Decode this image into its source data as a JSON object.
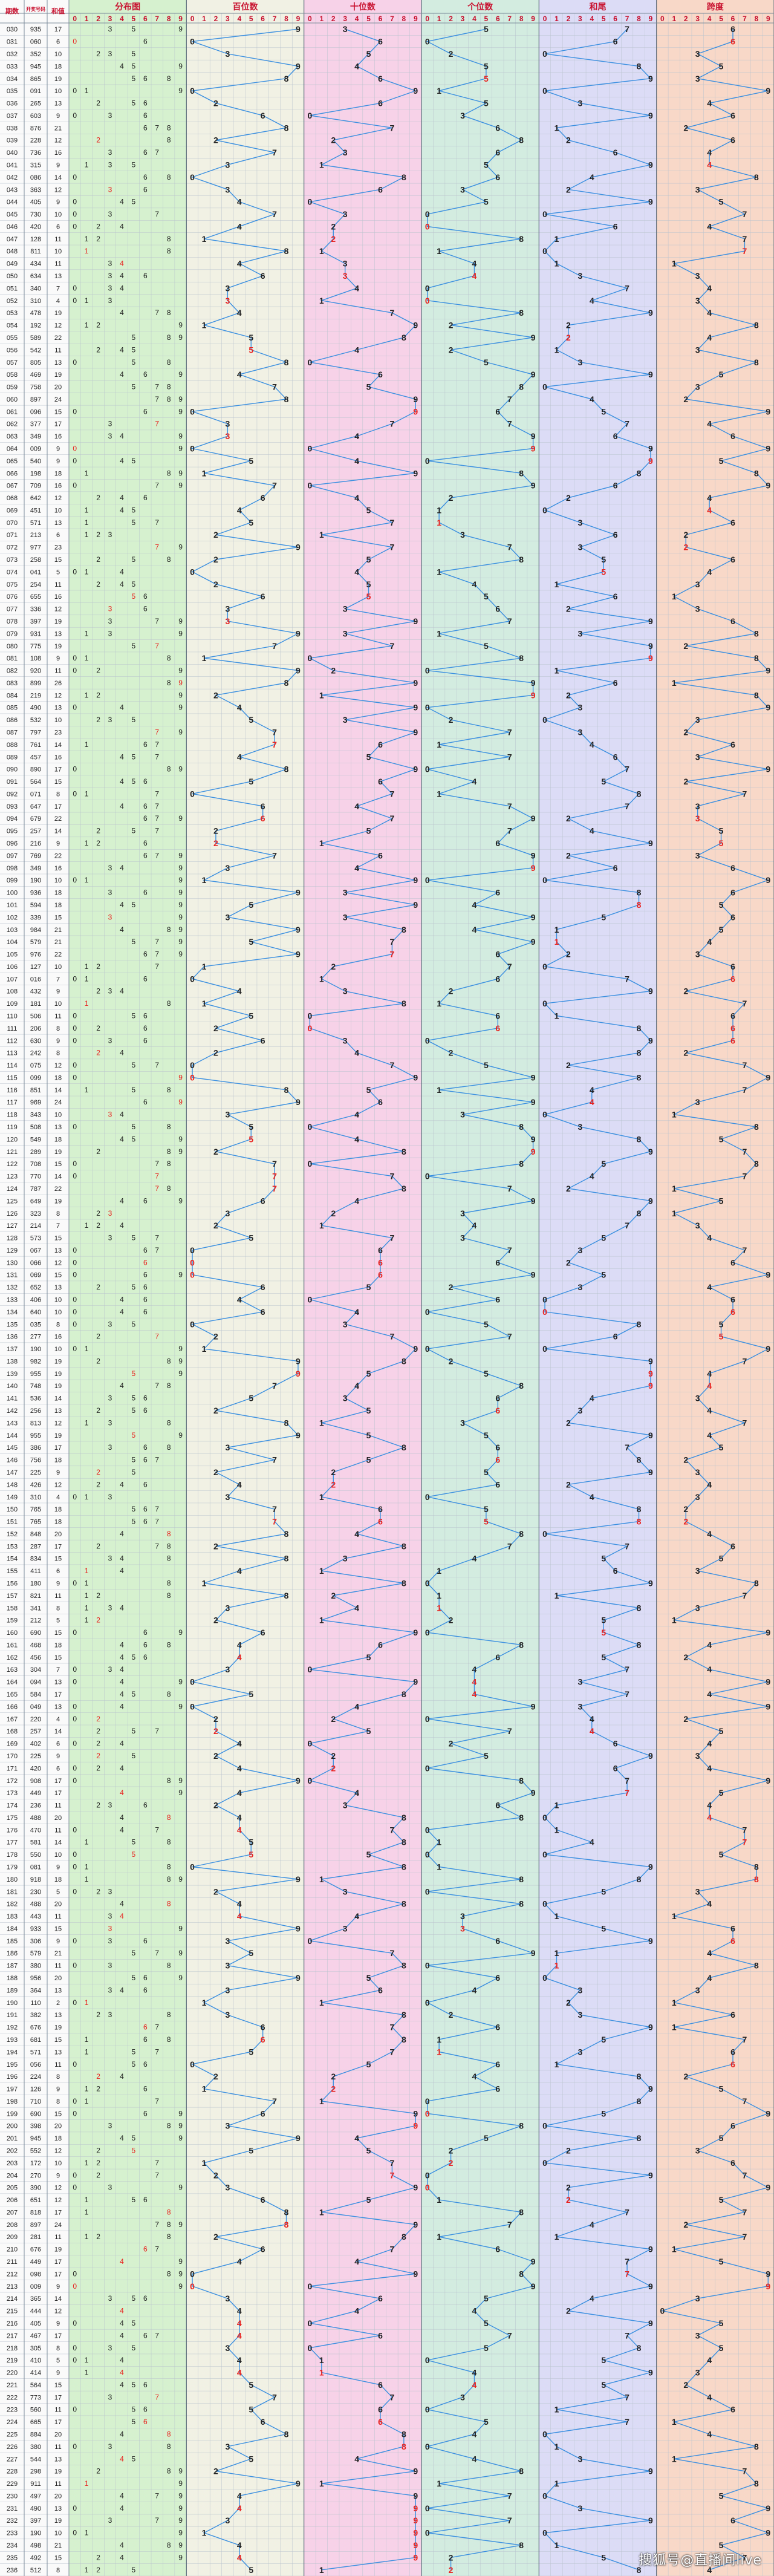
{
  "chart_data": {
    "type": "line",
    "header": {
      "issue_label": "期数",
      "number_label": "开奖号码",
      "sum_label": "和值",
      "sections": [
        "分布图",
        "百位数",
        "十位数",
        "个位数",
        "和尾",
        "跨度"
      ]
    },
    "digit_columns": [
      "0",
      "1",
      "2",
      "3",
      "4",
      "5",
      "6",
      "7",
      "8",
      "9"
    ],
    "rows": [
      {
        "issue": "030",
        "number": "935",
        "sum": "17"
      },
      {
        "issue": "031",
        "number": "060",
        "sum": "6"
      },
      {
        "issue": "032",
        "number": "352",
        "sum": "10"
      },
      {
        "issue": "033",
        "number": "945",
        "sum": "18"
      },
      {
        "issue": "034",
        "number": "865",
        "sum": "19"
      },
      {
        "issue": "035",
        "number": "091",
        "sum": "10"
      },
      {
        "issue": "036",
        "number": "265",
        "sum": "13"
      },
      {
        "issue": "037",
        "number": "603",
        "sum": "9"
      },
      {
        "issue": "038",
        "number": "876",
        "sum": "21"
      },
      {
        "issue": "039",
        "number": "228",
        "sum": "12"
      },
      {
        "issue": "040",
        "number": "736",
        "sum": "16"
      },
      {
        "issue": "041",
        "number": "315",
        "sum": "9"
      },
      {
        "issue": "042",
        "number": "086",
        "sum": "14"
      },
      {
        "issue": "043",
        "number": "363",
        "sum": "12"
      },
      {
        "issue": "044",
        "number": "405",
        "sum": "9"
      },
      {
        "issue": "045",
        "number": "730",
        "sum": "10"
      },
      {
        "issue": "046",
        "number": "420",
        "sum": "6"
      },
      {
        "issue": "047",
        "number": "128",
        "sum": "11"
      },
      {
        "issue": "048",
        "number": "811",
        "sum": "10"
      },
      {
        "issue": "049",
        "number": "434",
        "sum": "11"
      },
      {
        "issue": "050",
        "number": "634",
        "sum": "13"
      },
      {
        "issue": "051",
        "number": "340",
        "sum": "7"
      },
      {
        "issue": "052",
        "number": "310",
        "sum": "4"
      },
      {
        "issue": "053",
        "number": "478",
        "sum": "19"
      },
      {
        "issue": "054",
        "number": "192",
        "sum": "12"
      },
      {
        "issue": "055",
        "number": "589",
        "sum": "22"
      },
      {
        "issue": "056",
        "number": "542",
        "sum": "11"
      },
      {
        "issue": "057",
        "number": "805",
        "sum": "13"
      },
      {
        "issue": "058",
        "number": "469",
        "sum": "19"
      },
      {
        "issue": "059",
        "number": "758",
        "sum": "20"
      },
      {
        "issue": "060",
        "number": "897",
        "sum": "24"
      },
      {
        "issue": "061",
        "number": "096",
        "sum": "15"
      },
      {
        "issue": "062",
        "number": "377",
        "sum": "17"
      },
      {
        "issue": "063",
        "number": "349",
        "sum": "16"
      },
      {
        "issue": "064",
        "number": "009",
        "sum": "9"
      },
      {
        "issue": "065",
        "number": "540",
        "sum": "9"
      },
      {
        "issue": "066",
        "number": "198",
        "sum": "18"
      },
      {
        "issue": "067",
        "number": "709",
        "sum": "16"
      },
      {
        "issue": "068",
        "number": "642",
        "sum": "12"
      },
      {
        "issue": "069",
        "number": "451",
        "sum": "10"
      },
      {
        "issue": "070",
        "number": "571",
        "sum": "13"
      },
      {
        "issue": "071",
        "number": "213",
        "sum": "6"
      },
      {
        "issue": "072",
        "number": "977",
        "sum": "23"
      },
      {
        "issue": "073",
        "number": "258",
        "sum": "15"
      },
      {
        "issue": "074",
        "number": "041",
        "sum": "5"
      },
      {
        "issue": "075",
        "number": "254",
        "sum": "11"
      },
      {
        "issue": "076",
        "number": "655",
        "sum": "16"
      },
      {
        "issue": "077",
        "number": "336",
        "sum": "12"
      },
      {
        "issue": "078",
        "number": "397",
        "sum": "19"
      },
      {
        "issue": "079",
        "number": "931",
        "sum": "13"
      },
      {
        "issue": "080",
        "number": "775",
        "sum": "19"
      },
      {
        "issue": "081",
        "number": "108",
        "sum": "9"
      },
      {
        "issue": "082",
        "number": "920",
        "sum": "11"
      },
      {
        "issue": "083",
        "number": "899",
        "sum": "26"
      },
      {
        "issue": "084",
        "number": "219",
        "sum": "12"
      },
      {
        "issue": "085",
        "number": "490",
        "sum": "13"
      },
      {
        "issue": "086",
        "number": "532",
        "sum": "10"
      },
      {
        "issue": "087",
        "number": "797",
        "sum": "23"
      },
      {
        "issue": "088",
        "number": "761",
        "sum": "14"
      },
      {
        "issue": "089",
        "number": "457",
        "sum": "16"
      },
      {
        "issue": "090",
        "number": "890",
        "sum": "17"
      },
      {
        "issue": "091",
        "number": "564",
        "sum": "15"
      },
      {
        "issue": "092",
        "number": "071",
        "sum": "8"
      },
      {
        "issue": "093",
        "number": "647",
        "sum": "17"
      },
      {
        "issue": "094",
        "number": "679",
        "sum": "22"
      },
      {
        "issue": "095",
        "number": "257",
        "sum": "14"
      },
      {
        "issue": "096",
        "number": "216",
        "sum": "9"
      },
      {
        "issue": "097",
        "number": "769",
        "sum": "22"
      },
      {
        "issue": "098",
        "number": "349",
        "sum": "16"
      },
      {
        "issue": "099",
        "number": "190",
        "sum": "10"
      },
      {
        "issue": "100",
        "number": "936",
        "sum": "18"
      },
      {
        "issue": "101",
        "number": "594",
        "sum": "18"
      },
      {
        "issue": "102",
        "number": "339",
        "sum": "15"
      },
      {
        "issue": "103",
        "number": "984",
        "sum": "21"
      },
      {
        "issue": "104",
        "number": "579",
        "sum": "21"
      },
      {
        "issue": "105",
        "number": "976",
        "sum": "22"
      },
      {
        "issue": "106",
        "number": "127",
        "sum": "10"
      },
      {
        "issue": "107",
        "number": "016",
        "sum": "7"
      },
      {
        "issue": "108",
        "number": "432",
        "sum": "9"
      },
      {
        "issue": "109",
        "number": "181",
        "sum": "10"
      },
      {
        "issue": "110",
        "number": "506",
        "sum": "11"
      },
      {
        "issue": "111",
        "number": "206",
        "sum": "8"
      },
      {
        "issue": "112",
        "number": "630",
        "sum": "9"
      },
      {
        "issue": "113",
        "number": "242",
        "sum": "8"
      },
      {
        "issue": "114",
        "number": "075",
        "sum": "12"
      },
      {
        "issue": "115",
        "number": "099",
        "sum": "18"
      },
      {
        "issue": "116",
        "number": "851",
        "sum": "14"
      },
      {
        "issue": "117",
        "number": "969",
        "sum": "24"
      },
      {
        "issue": "118",
        "number": "343",
        "sum": "10"
      },
      {
        "issue": "119",
        "number": "508",
        "sum": "13"
      },
      {
        "issue": "120",
        "number": "549",
        "sum": "18"
      },
      {
        "issue": "121",
        "number": "289",
        "sum": "19"
      },
      {
        "issue": "122",
        "number": "708",
        "sum": "15"
      },
      {
        "issue": "123",
        "number": "770",
        "sum": "14"
      },
      {
        "issue": "124",
        "number": "787",
        "sum": "22"
      },
      {
        "issue": "125",
        "number": "649",
        "sum": "19"
      },
      {
        "issue": "126",
        "number": "323",
        "sum": "8"
      },
      {
        "issue": "127",
        "number": "214",
        "sum": "7"
      },
      {
        "issue": "128",
        "number": "573",
        "sum": "15"
      },
      {
        "issue": "129",
        "number": "067",
        "sum": "13"
      },
      {
        "issue": "130",
        "number": "066",
        "sum": "12"
      },
      {
        "issue": "131",
        "number": "069",
        "sum": "15"
      },
      {
        "issue": "132",
        "number": "652",
        "sum": "13"
      },
      {
        "issue": "133",
        "number": "406",
        "sum": "10"
      },
      {
        "issue": "134",
        "number": "640",
        "sum": "10"
      },
      {
        "issue": "135",
        "number": "035",
        "sum": "8"
      },
      {
        "issue": "136",
        "number": "277",
        "sum": "16"
      },
      {
        "issue": "137",
        "number": "190",
        "sum": "10"
      },
      {
        "issue": "138",
        "number": "982",
        "sum": "19"
      },
      {
        "issue": "139",
        "number": "955",
        "sum": "19"
      },
      {
        "issue": "140",
        "number": "748",
        "sum": "19"
      },
      {
        "issue": "141",
        "number": "536",
        "sum": "14"
      },
      {
        "issue": "142",
        "number": "256",
        "sum": "13"
      },
      {
        "issue": "143",
        "number": "813",
        "sum": "12"
      },
      {
        "issue": "144",
        "number": "955",
        "sum": "19"
      },
      {
        "issue": "145",
        "number": "386",
        "sum": "17"
      },
      {
        "issue": "146",
        "number": "756",
        "sum": "18"
      },
      {
        "issue": "147",
        "number": "225",
        "sum": "9"
      },
      {
        "issue": "148",
        "number": "426",
        "sum": "12"
      },
      {
        "issue": "149",
        "number": "310",
        "sum": "4"
      },
      {
        "issue": "150",
        "number": "765",
        "sum": "18"
      },
      {
        "issue": "151",
        "number": "765",
        "sum": "18"
      },
      {
        "issue": "152",
        "number": "848",
        "sum": "20"
      },
      {
        "issue": "153",
        "number": "287",
        "sum": "17"
      },
      {
        "issue": "154",
        "number": "834",
        "sum": "15"
      },
      {
        "issue": "155",
        "number": "411",
        "sum": "6"
      },
      {
        "issue": "156",
        "number": "180",
        "sum": "9"
      },
      {
        "issue": "157",
        "number": "821",
        "sum": "11"
      },
      {
        "issue": "158",
        "number": "341",
        "sum": "8"
      },
      {
        "issue": "159",
        "number": "212",
        "sum": "5"
      },
      {
        "issue": "160",
        "number": "690",
        "sum": "15"
      },
      {
        "issue": "161",
        "number": "468",
        "sum": "18"
      },
      {
        "issue": "162",
        "number": "456",
        "sum": "15"
      },
      {
        "issue": "163",
        "number": "304",
        "sum": "7"
      },
      {
        "issue": "164",
        "number": "094",
        "sum": "13"
      },
      {
        "issue": "165",
        "number": "584",
        "sum": "17"
      },
      {
        "issue": "166",
        "number": "049",
        "sum": "13"
      },
      {
        "issue": "167",
        "number": "220",
        "sum": "4"
      },
      {
        "issue": "168",
        "number": "257",
        "sum": "14"
      },
      {
        "issue": "169",
        "number": "402",
        "sum": "6"
      },
      {
        "issue": "170",
        "number": "225",
        "sum": "9"
      },
      {
        "issue": "171",
        "number": "420",
        "sum": "6"
      },
      {
        "issue": "172",
        "number": "908",
        "sum": "17"
      },
      {
        "issue": "173",
        "number": "449",
        "sum": "17"
      },
      {
        "issue": "174",
        "number": "236",
        "sum": "11"
      },
      {
        "issue": "175",
        "number": "488",
        "sum": "20"
      },
      {
        "issue": "176",
        "number": "470",
        "sum": "11"
      },
      {
        "issue": "177",
        "number": "581",
        "sum": "14"
      },
      {
        "issue": "178",
        "number": "550",
        "sum": "10"
      },
      {
        "issue": "179",
        "number": "081",
        "sum": "9"
      },
      {
        "issue": "180",
        "number": "918",
        "sum": "18"
      },
      {
        "issue": "181",
        "number": "230",
        "sum": "5"
      },
      {
        "issue": "182",
        "number": "488",
        "sum": "20"
      },
      {
        "issue": "183",
        "number": "443",
        "sum": "11"
      },
      {
        "issue": "184",
        "number": "933",
        "sum": "15"
      },
      {
        "issue": "185",
        "number": "306",
        "sum": "9"
      },
      {
        "issue": "186",
        "number": "579",
        "sum": "21"
      },
      {
        "issue": "187",
        "number": "380",
        "sum": "11"
      },
      {
        "issue": "188",
        "number": "956",
        "sum": "20"
      },
      {
        "issue": "189",
        "number": "364",
        "sum": "13"
      },
      {
        "issue": "190",
        "number": "110",
        "sum": "2"
      },
      {
        "issue": "191",
        "number": "382",
        "sum": "13"
      },
      {
        "issue": "192",
        "number": "676",
        "sum": "19"
      },
      {
        "issue": "193",
        "number": "681",
        "sum": "15"
      },
      {
        "issue": "194",
        "number": "571",
        "sum": "13"
      },
      {
        "issue": "195",
        "number": "056",
        "sum": "11"
      },
      {
        "issue": "196",
        "number": "224",
        "sum": "8"
      },
      {
        "issue": "197",
        "number": "126",
        "sum": "9"
      },
      {
        "issue": "198",
        "number": "710",
        "sum": "8"
      },
      {
        "issue": "199",
        "number": "690",
        "sum": "15"
      },
      {
        "issue": "200",
        "number": "398",
        "sum": "20"
      },
      {
        "issue": "201",
        "number": "945",
        "sum": "18"
      },
      {
        "issue": "202",
        "number": "552",
        "sum": "12"
      },
      {
        "issue": "203",
        "number": "172",
        "sum": "10"
      },
      {
        "issue": "204",
        "number": "270",
        "sum": "9"
      },
      {
        "issue": "205",
        "number": "390",
        "sum": "12"
      },
      {
        "issue": "206",
        "number": "651",
        "sum": "12"
      },
      {
        "issue": "207",
        "number": "818",
        "sum": "17"
      },
      {
        "issue": "208",
        "number": "897",
        "sum": "24"
      },
      {
        "issue": "209",
        "number": "281",
        "sum": "11"
      },
      {
        "issue": "210",
        "number": "676",
        "sum": "19"
      },
      {
        "issue": "211",
        "number": "449",
        "sum": "17"
      },
      {
        "issue": "212",
        "number": "098",
        "sum": "17"
      },
      {
        "issue": "213",
        "number": "009",
        "sum": "9"
      },
      {
        "issue": "214",
        "number": "365",
        "sum": "14"
      },
      {
        "issue": "215",
        "number": "444",
        "sum": "12"
      },
      {
        "issue": "216",
        "number": "405",
        "sum": "9"
      },
      {
        "issue": "217",
        "number": "467",
        "sum": "17"
      },
      {
        "issue": "218",
        "number": "305",
        "sum": "8"
      },
      {
        "issue": "219",
        "number": "410",
        "sum": "5"
      },
      {
        "issue": "220",
        "number": "414",
        "sum": "9"
      },
      {
        "issue": "221",
        "number": "564",
        "sum": "15"
      },
      {
        "issue": "222",
        "number": "773",
        "sum": "17"
      },
      {
        "issue": "223",
        "number": "560",
        "sum": "11"
      },
      {
        "issue": "224",
        "number": "665",
        "sum": "17"
      },
      {
        "issue": "225",
        "number": "884",
        "sum": "20"
      },
      {
        "issue": "226",
        "number": "380",
        "sum": "11"
      },
      {
        "issue": "227",
        "number": "544",
        "sum": "13"
      },
      {
        "issue": "228",
        "number": "298",
        "sum": "19"
      },
      {
        "issue": "229",
        "number": "911",
        "sum": "11"
      },
      {
        "issue": "230",
        "number": "497",
        "sum": "20"
      },
      {
        "issue": "231",
        "number": "490",
        "sum": "13"
      },
      {
        "issue": "232",
        "number": "397",
        "sum": "19"
      },
      {
        "issue": "233",
        "number": "190",
        "sum": "10"
      },
      {
        "issue": "234",
        "number": "498",
        "sum": "21"
      },
      {
        "issue": "235",
        "number": "492",
        "sum": "15"
      },
      {
        "issue": "236",
        "number": "512",
        "sum": "8"
      }
    ]
  },
  "colors": {
    "distribution_bg": "#d6f1cf",
    "hundreds_bg": "#f1f1e4",
    "tens_bg": "#f7d2e8",
    "units_bg": "#d3ece0",
    "sum_tail_bg": "#dcdcf6",
    "span_bg": "#f8d8c8",
    "grid_line": "#b9c3ce",
    "header_text": "#c8102e",
    "trend_line": "#3a8fe0",
    "repeat_highlight": "#e8221f",
    "normal_text": "#222222"
  },
  "watermark": "搜狐号@直播间live"
}
